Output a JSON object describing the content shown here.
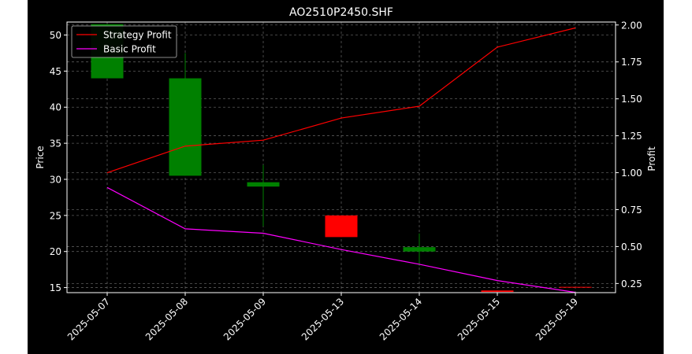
{
  "chart_data": {
    "type": "candlestick+line",
    "title": "AO2510P2450.SHF",
    "xlabel": "",
    "ylabel_left": "Price",
    "ylabel_right": "Profit",
    "categories": [
      "2025-05-07",
      "2025-05-08",
      "2025-05-09",
      "2025-05-13",
      "2025-05-14",
      "2025-05-15",
      "2025-05-19"
    ],
    "ylim_left": [
      14.3,
      51.8
    ],
    "ylim_right": [
      0.188,
      2.02
    ],
    "yticks_left": [
      15,
      20,
      25,
      30,
      35,
      40,
      45,
      50
    ],
    "yticks_right": [
      0.25,
      0.5,
      0.75,
      1.0,
      1.25,
      1.5,
      1.75,
      2.0
    ],
    "ytick_labels_right": [
      "0.25",
      "0.50",
      "0.75",
      "1.00",
      "1.25",
      "1.50",
      "1.75",
      "2.00"
    ],
    "grid": true,
    "legend_position": "top-left",
    "candles": [
      {
        "date": "2025-05-07",
        "open": 44.0,
        "high": 51.5,
        "low": 44.0,
        "close": 51.5
      },
      {
        "date": "2025-05-08",
        "open": 30.5,
        "high": 47.5,
        "low": 30.5,
        "close": 44.0
      },
      {
        "date": "2025-05-09",
        "open": 29.0,
        "high": 32.0,
        "low": 23.5,
        "close": 29.6
      },
      {
        "date": "2025-05-13",
        "open": 25.0,
        "high": 25.0,
        "low": 22.0,
        "close": 22.0
      },
      {
        "date": "2025-05-14",
        "open": 20.0,
        "high": 22.5,
        "low": 18.0,
        "close": 20.6
      },
      {
        "date": "2025-05-15",
        "open": 14.6,
        "high": 14.6,
        "low": 14.4,
        "close": 14.4
      },
      {
        "date": "2025-05-19",
        "open": 15.1,
        "high": 15.1,
        "low": 15.0,
        "close": 15.0
      }
    ],
    "series": [
      {
        "name": "Strategy Profit",
        "color": "#ff0000",
        "values": [
          1.0,
          1.18,
          1.22,
          1.37,
          1.45,
          1.85,
          1.98
        ]
      },
      {
        "name": "Basic Profit",
        "color": "#ff00ff",
        "values": [
          0.9,
          0.62,
          0.59,
          0.48,
          0.38,
          0.27,
          0.19
        ]
      }
    ],
    "colors": {
      "up": "#008000",
      "down": "#ff0000",
      "background": "#000000",
      "grid": "#808080",
      "text": "#ffffff"
    }
  }
}
